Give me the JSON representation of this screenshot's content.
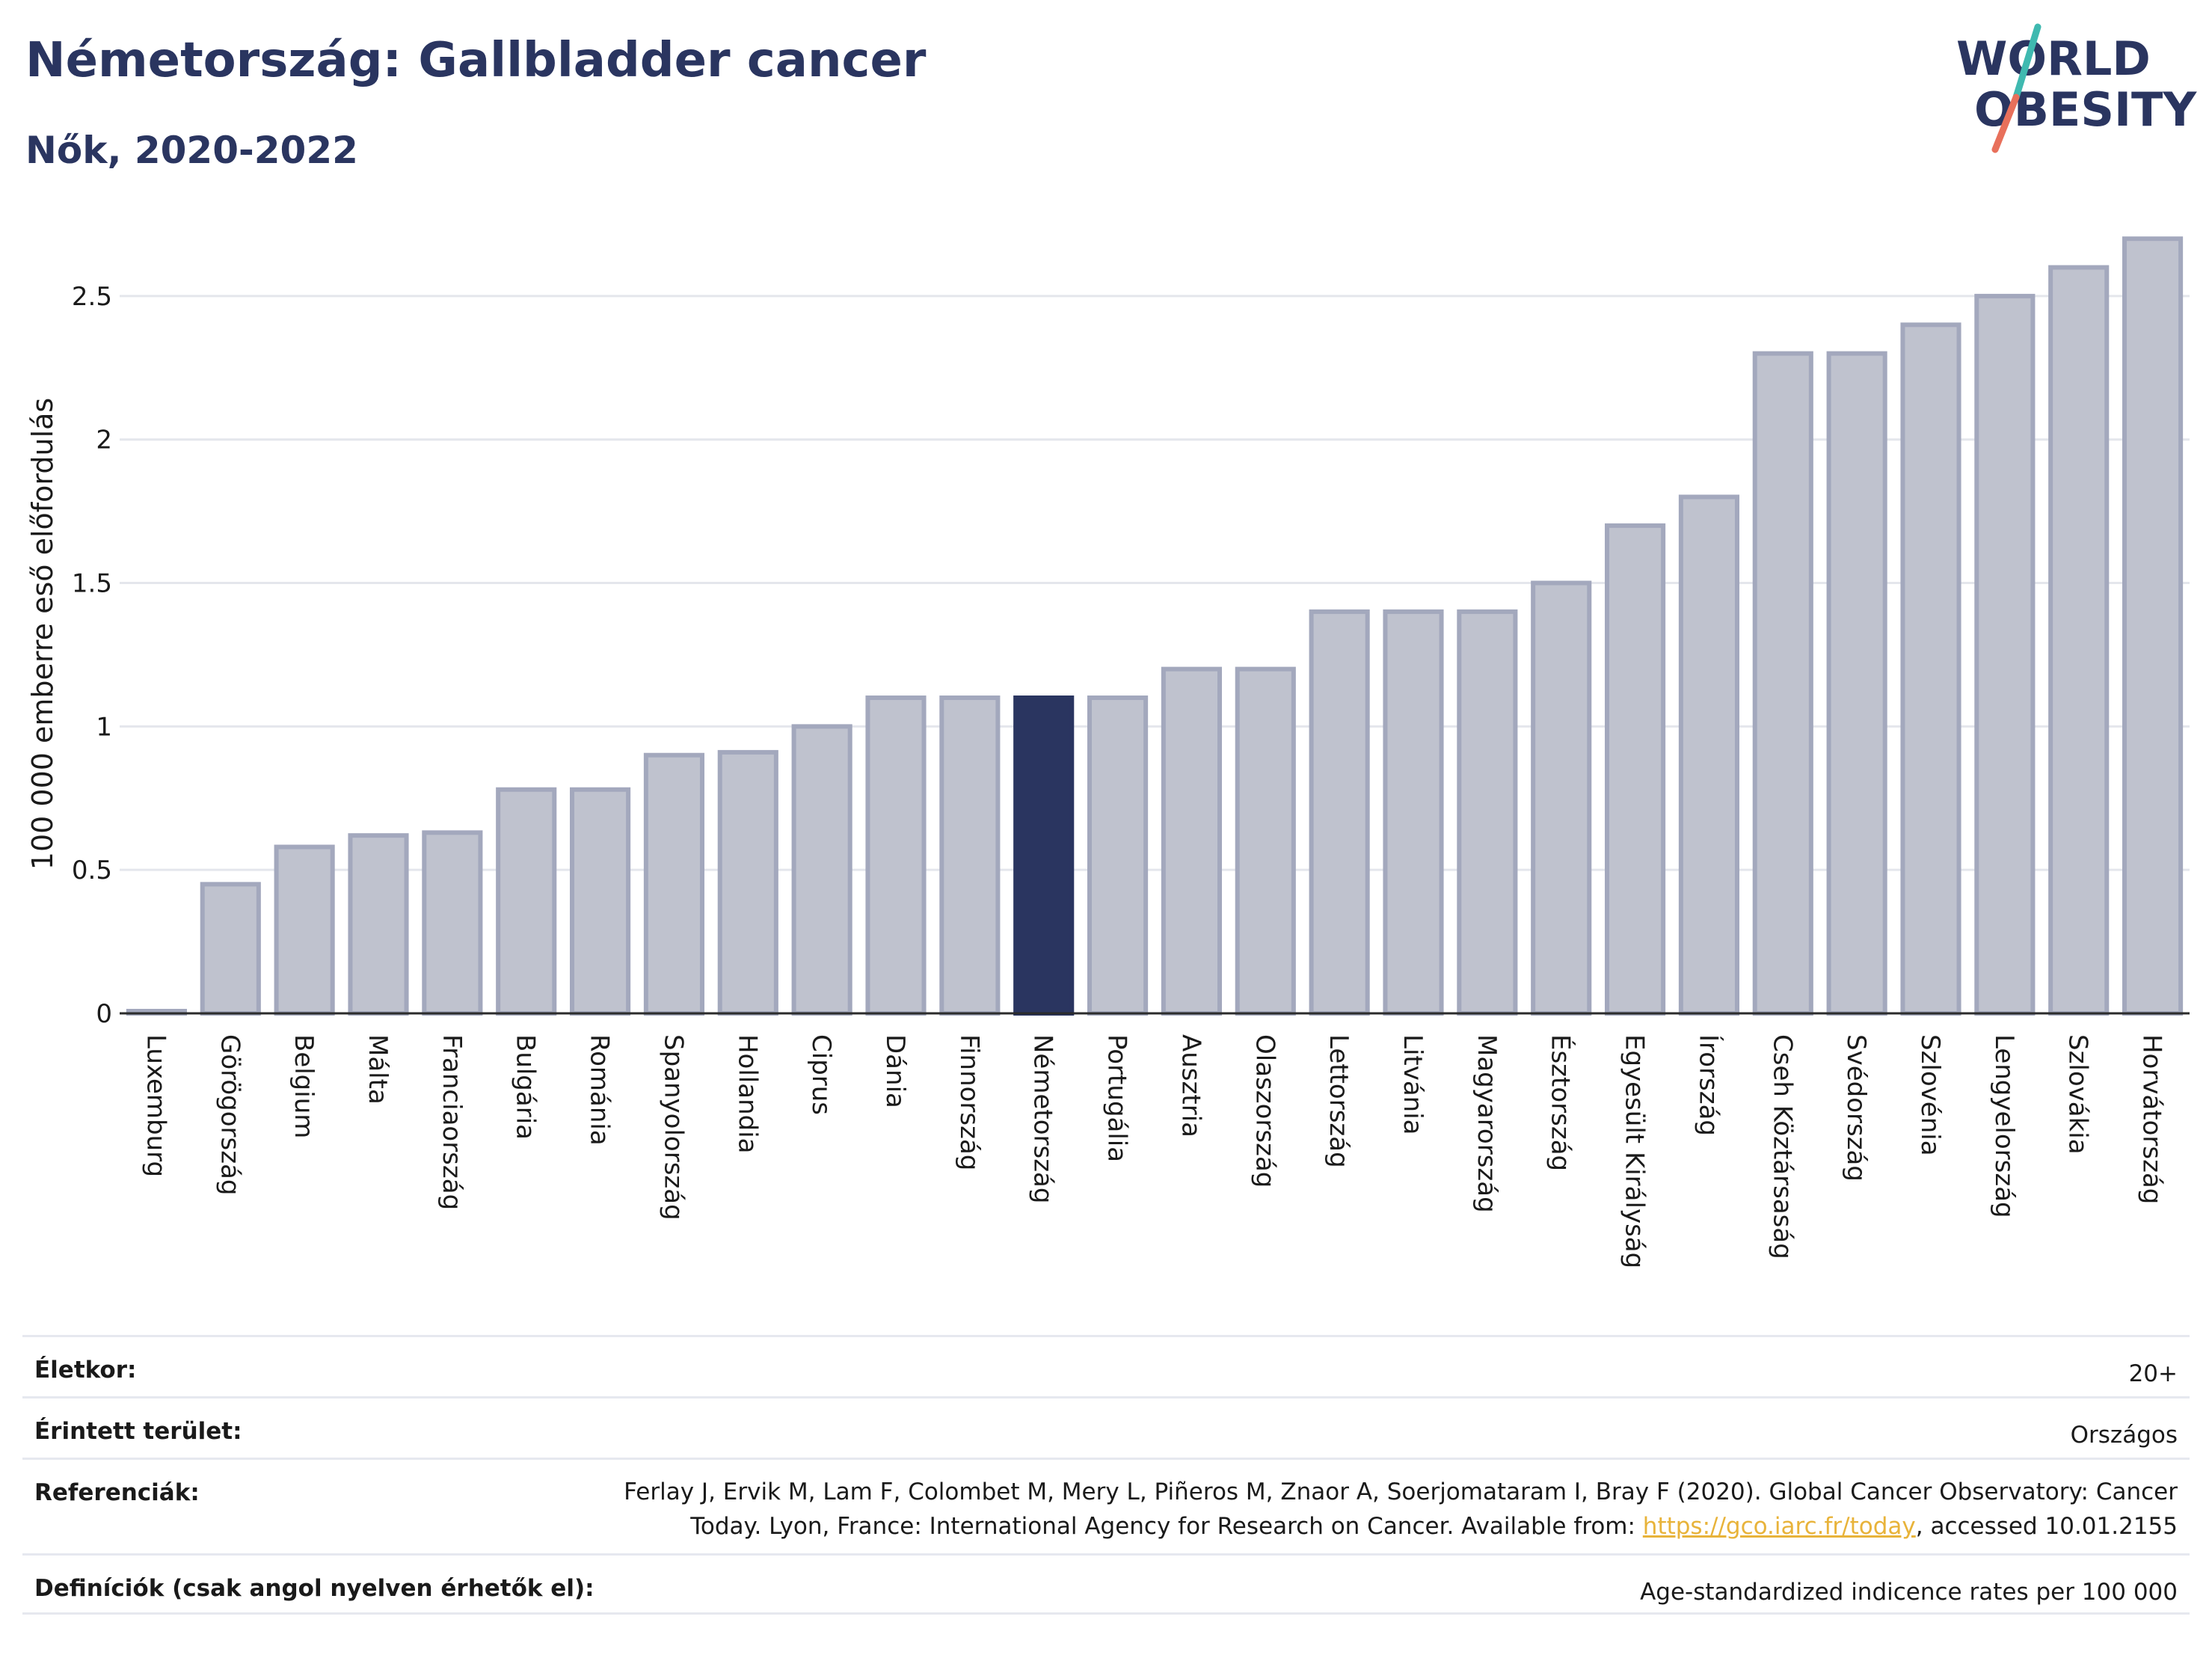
{
  "header": {
    "title": "Németország: Gallbladder cancer",
    "subtitle": "Nők, 2020-2022"
  },
  "logo": {
    "line1": "WORLD",
    "line2": "OBESITY",
    "colors": {
      "text": "#2a3560",
      "teal": "#3fb9b0",
      "coral": "#e8705b"
    }
  },
  "chart_data": {
    "type": "bar",
    "ylabel": "100 000 emberre eső előfordulás",
    "ylim": [
      0,
      2.75
    ],
    "yticks": [
      0,
      0.5,
      1,
      1.5,
      2,
      2.5
    ],
    "ytick_labels": [
      "0",
      "0.5",
      "1",
      "1.5",
      "2",
      "2.5"
    ],
    "grid": true,
    "highlight": "Németország",
    "colors": {
      "bar": "#bfc2ce",
      "bar_edge": "#a3a8bd",
      "highlight": "#2a3560"
    },
    "categories": [
      "Luxemburg",
      "Görögország",
      "Belgium",
      "Málta",
      "Franciaország",
      "Bulgária",
      "Románia",
      "Spanyolország",
      "Hollandia",
      "Ciprus",
      "Dánia",
      "Finnország",
      "Németország",
      "Portugália",
      "Ausztria",
      "Olaszország",
      "Lettország",
      "Litvánia",
      "Magyarország",
      "Észtország",
      "Egyesült Királyság",
      "Írország",
      "Cseh Köztársaság",
      "Svédország",
      "Szlovénia",
      "Lengyelország",
      "Szlovákia",
      "Horvátország"
    ],
    "values": [
      0.0,
      0.45,
      0.58,
      0.62,
      0.63,
      0.78,
      0.78,
      0.9,
      0.91,
      1.0,
      1.1,
      1.1,
      1.1,
      1.1,
      1.2,
      1.2,
      1.4,
      1.4,
      1.4,
      1.5,
      1.7,
      1.8,
      2.3,
      2.3,
      2.4,
      2.5,
      2.6,
      2.7
    ]
  },
  "info": {
    "age_label": "Életkor:",
    "age_value": "20+",
    "area_label": "Érintett terület:",
    "area_value": "Országos",
    "ref_label": "Referenciák:",
    "ref_text_1": "Ferlay J, Ervik M, Lam F, Colombet M, Mery L, Piñeros M, Znaor A, Soerjomataram I, Bray F (2020). Global Cancer Observatory: Cancer Today. Lyon, France: International Agency for Research on Cancer. Available from: ",
    "ref_link": "https://gco.iarc.fr/today",
    "ref_text_2": ", accessed 10.01.2155",
    "def_label": "Definíciók (csak angol nyelven érhetők el):",
    "def_value": "Age-standardized indicence rates per 100 000"
  }
}
